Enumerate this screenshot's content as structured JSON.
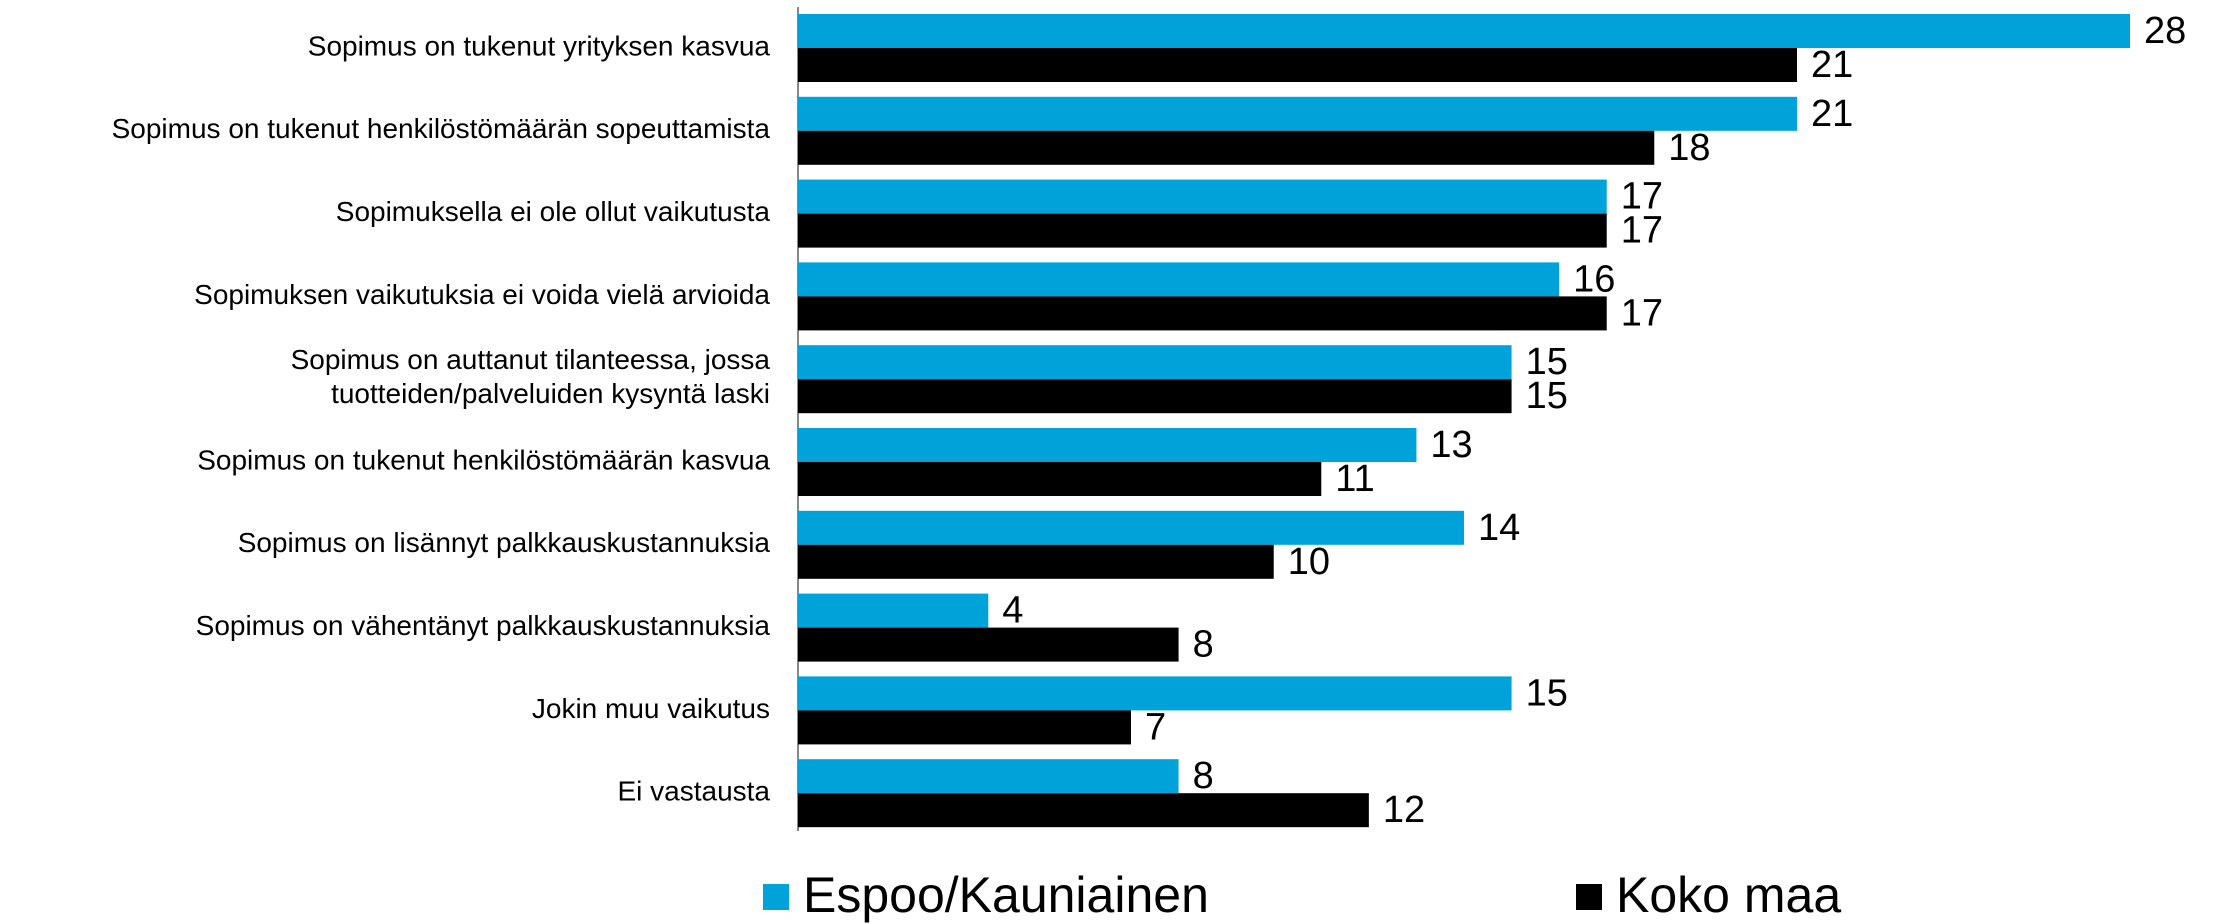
{
  "chart_data": {
    "type": "hbar",
    "categories": [
      "Sopimus on tukenut yrityksen kasvua",
      "Sopimus on tukenut henkilöstömäärän sopeuttamista",
      "Sopimuksella ei ole ollut vaikutusta",
      "Sopimuksen vaikutuksia ei voida vielä arvioida",
      "Sopimus on auttanut tilanteessa, jossa\ntuotteiden/palveluiden kysyntä laski",
      "Sopimus on tukenut henkilöstömäärän kasvua",
      "Sopimus on lisännyt palkkauskustannuksia",
      "Sopimus on vähentänyt palkkauskustannuksia",
      "Jokin muu vaikutus",
      "Ei vastausta"
    ],
    "series": [
      {
        "name": "Espoo/Kauniainen",
        "color": "#00a2da",
        "values": [
          28,
          21,
          17,
          16,
          15,
          13,
          14,
          4,
          15,
          8
        ]
      },
      {
        "name": "Koko maa",
        "color": "#000000",
        "values": [
          21,
          18,
          17,
          17,
          15,
          11,
          10,
          8,
          7,
          12
        ]
      }
    ],
    "legend": "bottom"
  }
}
